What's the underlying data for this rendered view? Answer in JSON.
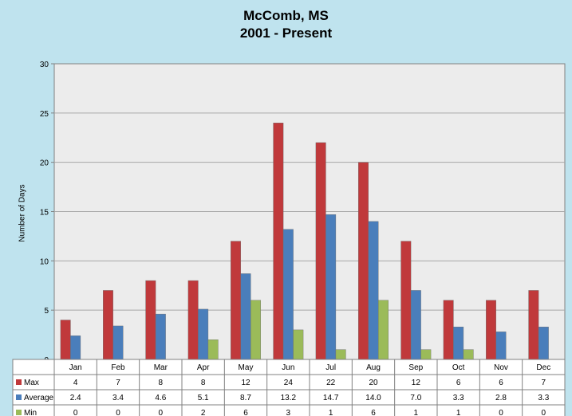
{
  "chart_data": {
    "type": "bar",
    "title": "McComb, MS",
    "subtitle": "2001 - Present",
    "ylabel": "Number of Days",
    "xlabel": "",
    "ylim": [
      0,
      30
    ],
    "yticks": [
      0,
      5,
      10,
      15,
      20,
      25,
      30
    ],
    "grid": true,
    "legend": "table-below",
    "categories": [
      "Jan",
      "Feb",
      "Mar",
      "Apr",
      "May",
      "Jun",
      "Jul",
      "Aug",
      "Sep",
      "Oct",
      "Nov",
      "Dec"
    ],
    "series": [
      {
        "name": "Max",
        "color": "#c0393b",
        "values": [
          4,
          7,
          8,
          8,
          12,
          24,
          22,
          20,
          12,
          6,
          6,
          7
        ],
        "labels": [
          "4",
          "7",
          "8",
          "8",
          "12",
          "24",
          "22",
          "20",
          "12",
          "6",
          "6",
          "7"
        ]
      },
      {
        "name": "Average",
        "color": "#4a7ebb",
        "values": [
          2.4,
          3.4,
          4.6,
          5.1,
          8.7,
          13.2,
          14.7,
          14.0,
          7.0,
          3.3,
          2.8,
          3.3
        ],
        "labels": [
          "2.4",
          "3.4",
          "4.6",
          "5.1",
          "8.7",
          "13.2",
          "14.7",
          "14.0",
          "7.0",
          "3.3",
          "2.8",
          "3.3"
        ]
      },
      {
        "name": "Min",
        "color": "#9bbb59",
        "values": [
          0,
          0,
          0,
          2,
          6,
          3,
          1,
          6,
          1,
          1,
          0,
          0
        ],
        "labels": [
          "0",
          "0",
          "0",
          "2",
          "6",
          "3",
          "1",
          "6",
          "1",
          "1",
          "0",
          "0"
        ]
      }
    ]
  }
}
